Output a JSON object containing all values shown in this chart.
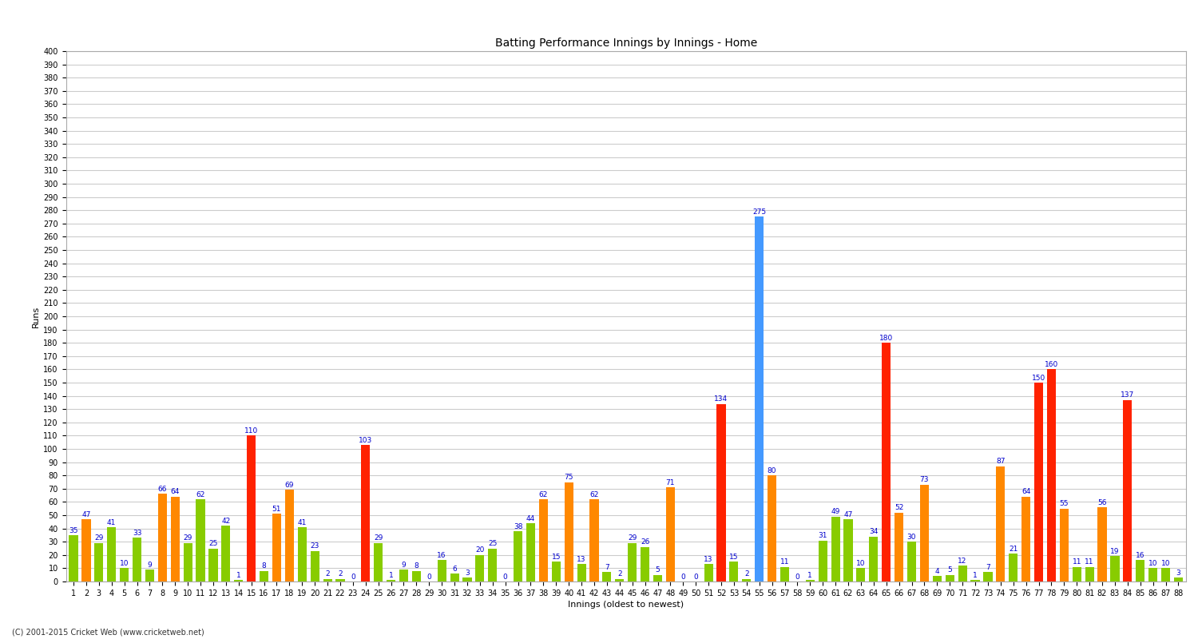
{
  "title": "Batting Performance Innings by Innings - Home",
  "xlabel": "Innings (oldest to newest)",
  "ylabel": "Runs",
  "footer": "(C) 2001-2015 Cricket Web (www.cricketweb.net)",
  "innings": [
    1,
    2,
    3,
    4,
    5,
    6,
    7,
    8,
    9,
    10,
    11,
    12,
    13,
    14,
    15,
    16,
    17,
    18,
    19,
    20,
    21,
    22,
    23,
    24,
    25,
    26,
    27,
    28,
    29,
    30,
    31,
    32,
    33,
    34,
    35,
    36,
    37,
    38,
    39,
    40,
    41,
    42,
    43,
    44,
    45,
    46,
    47,
    48,
    49,
    50,
    51,
    52,
    53,
    54,
    55,
    56,
    57,
    58,
    59,
    60,
    61,
    62,
    63,
    64,
    65,
    66,
    67,
    68,
    69,
    70,
    71,
    72,
    73,
    74,
    75,
    76,
    77,
    78,
    79,
    80,
    81,
    82,
    83,
    84,
    85,
    86,
    87,
    88
  ],
  "scores": [
    35,
    47,
    29,
    41,
    10,
    33,
    9,
    66,
    64,
    29,
    62,
    25,
    42,
    1,
    110,
    8,
    51,
    69,
    41,
    23,
    2,
    2,
    0,
    103,
    29,
    1,
    9,
    8,
    0,
    16,
    6,
    3,
    20,
    25,
    0,
    38,
    44,
    62,
    15,
    75,
    13,
    62,
    7,
    2,
    29,
    26,
    5,
    71,
    0,
    0,
    13,
    134,
    15,
    2,
    275,
    80,
    11,
    0,
    1,
    31,
    49,
    47,
    10,
    34,
    180,
    52,
    30,
    73,
    4,
    5,
    12,
    1,
    7,
    87,
    21,
    64,
    150,
    160,
    55,
    11,
    11,
    56,
    19,
    137,
    16,
    10,
    10,
    3
  ],
  "colors": [
    "green",
    "orange",
    "green",
    "green",
    "green",
    "green",
    "green",
    "orange",
    "orange",
    "green",
    "green",
    "green",
    "green",
    "green",
    "red",
    "green",
    "orange",
    "orange",
    "green",
    "green",
    "green",
    "green",
    "green",
    "red",
    "green",
    "green",
    "green",
    "green",
    "green",
    "green",
    "green",
    "green",
    "green",
    "green",
    "green",
    "green",
    "green",
    "orange",
    "green",
    "orange",
    "green",
    "orange",
    "green",
    "green",
    "green",
    "green",
    "green",
    "orange",
    "green",
    "green",
    "green",
    "red",
    "green",
    "green",
    "blue",
    "orange",
    "green",
    "green",
    "green",
    "green",
    "green",
    "green",
    "green",
    "green",
    "red",
    "orange",
    "green",
    "orange",
    "green",
    "green",
    "green",
    "green",
    "green",
    "orange",
    "green",
    "orange",
    "red",
    "red",
    "orange",
    "green",
    "green",
    "orange",
    "green",
    "red",
    "green",
    "green",
    "green",
    "green"
  ],
  "ylim": [
    0,
    400
  ],
  "yticks": [
    0,
    10,
    20,
    30,
    40,
    50,
    60,
    70,
    80,
    90,
    100,
    110,
    120,
    130,
    140,
    150,
    160,
    170,
    180,
    190,
    200,
    210,
    220,
    230,
    240,
    250,
    260,
    270,
    280,
    290,
    300,
    310,
    320,
    330,
    340,
    350,
    360,
    370,
    380,
    390,
    400
  ],
  "bg_color": "#ffffff",
  "grid_color": "#cccccc",
  "bar_color_green": "#88cc00",
  "bar_color_orange": "#ff8800",
  "bar_color_red": "#ff2200",
  "bar_color_blue": "#4499ff",
  "annotation_color": "#0000cc",
  "annotation_fontsize": 6.5,
  "title_fontsize": 10,
  "axis_label_fontsize": 8,
  "tick_fontsize": 7
}
